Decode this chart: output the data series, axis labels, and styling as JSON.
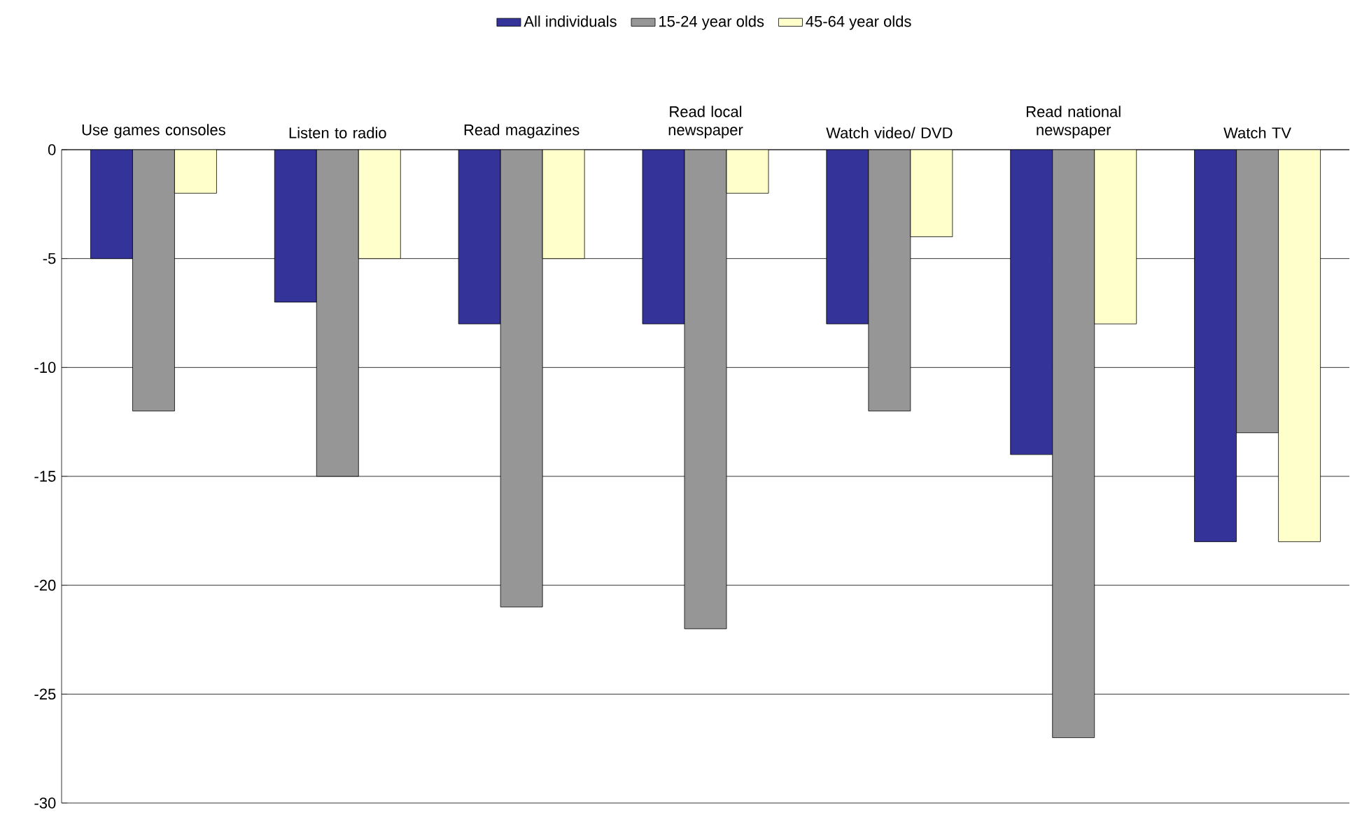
{
  "chart_data": {
    "type": "bar",
    "categories": [
      "Use games consoles",
      "Listen to radio",
      "Read magazines",
      "Read local newspaper",
      "Watch video/ DVD",
      "Read national newspaper",
      "Watch TV"
    ],
    "series": [
      {
        "name": "All individuals",
        "color": "#333399",
        "values": [
          -5,
          -7,
          -8,
          -8,
          -8,
          -14,
          -18
        ]
      },
      {
        "name": "15-24 year olds",
        "color": "#969696",
        "values": [
          -12,
          -15,
          -21,
          -22,
          -12,
          -27,
          -13
        ]
      },
      {
        "name": "45-64 year olds",
        "color": "#ffffcc",
        "values": [
          -2,
          -5,
          -5,
          -2,
          -4,
          -8,
          -18
        ]
      }
    ],
    "ylim": [
      -30,
      0
    ],
    "yticks": [
      -30,
      -25,
      -20,
      -15,
      -10,
      -5,
      0
    ],
    "grid": "y",
    "legend": "top"
  }
}
